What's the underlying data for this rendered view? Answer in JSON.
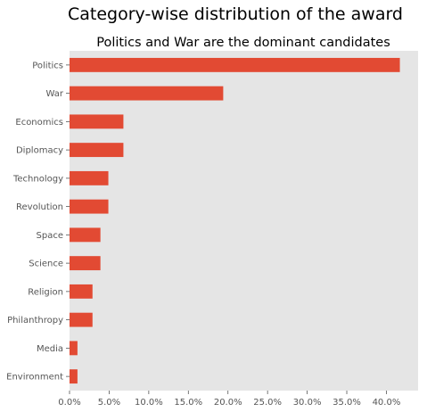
{
  "chart_data": {
    "type": "bar",
    "orientation": "horizontal",
    "suptitle": "Category-wise distribution of the award",
    "title": "Politics and War are the dominant candidates",
    "xlabel": "",
    "ylabel": "",
    "categories": [
      "Politics",
      "War",
      "Economics",
      "Diplomacy",
      "Technology",
      "Revolution",
      "Space",
      "Science",
      "Religion",
      "Philanthropy",
      "Media",
      "Environment"
    ],
    "values": [
      41.7,
      19.4,
      6.8,
      6.8,
      4.9,
      4.9,
      3.9,
      3.9,
      2.9,
      2.9,
      1.0,
      1.0
    ],
    "xlim": [
      0,
      44
    ],
    "x_ticks": [
      0,
      5,
      10,
      15,
      20,
      25,
      30,
      35,
      40
    ],
    "x_tick_labels": [
      "0.0%",
      "5.0%",
      "10.0%",
      "15.0%",
      "20.0%",
      "25.0%",
      "30.0%",
      "35.0%",
      "40.0%"
    ],
    "grid": false,
    "colors": {
      "bar": "#E24A33",
      "plot_background": "#E5E5E5",
      "page_background": "#FFFFFF",
      "tick_text": "#555555"
    }
  }
}
